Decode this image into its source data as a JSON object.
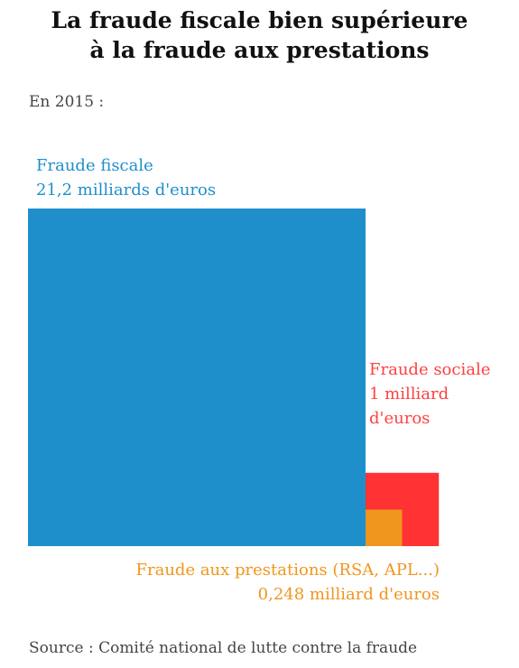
{
  "header": {
    "title_line1": "La fraude fiscale bien supérieure",
    "title_line2": "à la fraude aux prestations",
    "subtitle": "En 2015 :"
  },
  "chart_data": {
    "type": "area",
    "title": "La fraude fiscale bien supérieure à la fraude aux prestations",
    "subtitle": "En 2015 :",
    "unit": "milliards d'euros",
    "series": [
      {
        "name_line1": "Fraude fiscale",
        "value_line": "21,2 milliards d'euros",
        "value": 21.2,
        "color": "#1f8fcc"
      },
      {
        "name_line1": "Fraude sociale",
        "value_line": "1 milliard",
        "value_line2": "d'euros",
        "value": 1.0,
        "color": "#ff3333"
      },
      {
        "name_line1": "Fraude aux prestations (RSA, APL...)",
        "value_line": "0,248 milliard d'euros",
        "value": 0.248,
        "color": "#f0961e"
      }
    ]
  },
  "footer": {
    "source": "Source : Comité national de lutte contre la fraude"
  }
}
